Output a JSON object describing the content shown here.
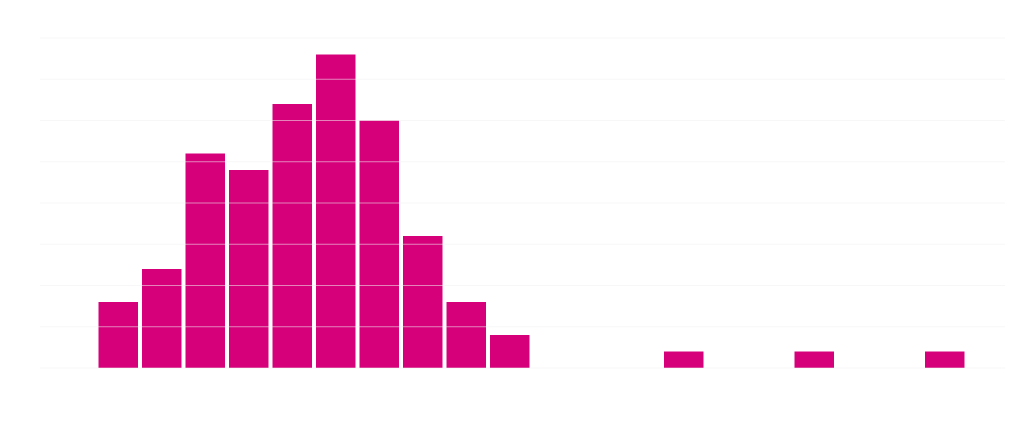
{
  "chart_data": {
    "type": "histogram",
    "bins": [
      0,
      1,
      2,
      3,
      4,
      5,
      6,
      7,
      8,
      9,
      10,
      11,
      12,
      13,
      14,
      15,
      16,
      17,
      18,
      19,
      20
    ],
    "values": [
      4,
      6,
      13,
      12,
      16,
      19,
      15,
      8,
      4,
      2,
      0,
      0,
      0,
      1,
      0,
      0,
      1,
      0,
      0,
      1
    ],
    "color": "#d6007b",
    "xlim": [
      0,
      20
    ],
    "ylim": [
      0,
      20
    ],
    "yticks": [
      0,
      2.5,
      5,
      7.5,
      10,
      12.5,
      15,
      17.5,
      20
    ],
    "grid": true
  }
}
